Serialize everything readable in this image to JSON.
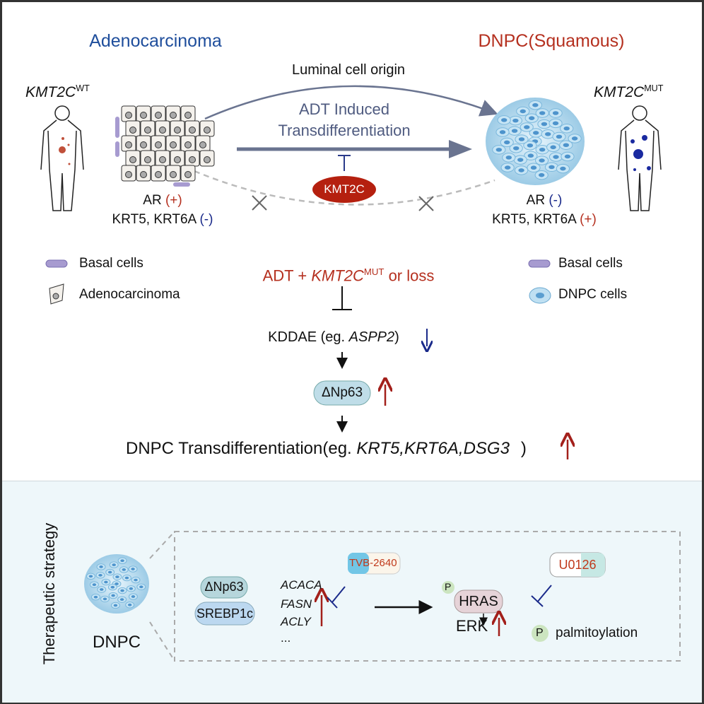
{
  "top": {
    "left_title": "Adenocarcinoma",
    "right_title": "DNPC(Squamous)",
    "luminal_origin": "Luminal cell origin",
    "adt_line1": "ADT Induced",
    "adt_line2": "Transdifferentiation",
    "kmt2c_label": "KMT2C",
    "left_gene": "KMT2C",
    "left_sup": "WT",
    "right_gene": "KMT2C",
    "right_sup": "MUT",
    "left_ar": "AR",
    "left_ar_sign": "(+)",
    "left_krt": "KRT5, KRT6A",
    "left_krt_sign": "(-)",
    "right_ar": "AR",
    "right_ar_sign": "(-)",
    "right_krt": "KRT5, KRT6A",
    "right_krt_sign": "(+)"
  },
  "legend": {
    "left": [
      "Basal cells",
      "Adenocarcinoma"
    ],
    "right": [
      "Basal cells",
      "DNPC cells"
    ]
  },
  "pathway": {
    "trigger_prefix": "ADT + ",
    "trigger_gene": "KMT2C",
    "trigger_sup": "MUT",
    "trigger_suffix": " or loss",
    "kddae_prefix": "KDDAE (eg. ",
    "kddae_gene": "ASPP2",
    "kddae_suffix": ")",
    "dnp63": "ΔNp63",
    "result_prefix": "DNPC Transdifferentiation(eg. ",
    "result_genes": "KRT5,KRT6A,DSG3",
    "result_suffix": ")"
  },
  "therapy": {
    "side_label": "Therapeutic strategy",
    "dnpc_label": "DNPC",
    "dnp63": "ΔNp63",
    "srebp": "SREBP1c",
    "genes": [
      "ACACA",
      "FASN",
      "ACLY",
      "..."
    ],
    "drug1_a": "TVB-",
    "drug1_b": "2640",
    "hras": "HRAS",
    "p": "P",
    "erk": "ERK",
    "drug2_a": "U01",
    "drug2_b": "26",
    "palmitoylation": "palmitoylation"
  },
  "colors": {
    "blue_title": "#1f4e9c",
    "red": "#b5301f",
    "arrow": "#6a7490",
    "inhibit_blue": "#1a2a8a"
  }
}
